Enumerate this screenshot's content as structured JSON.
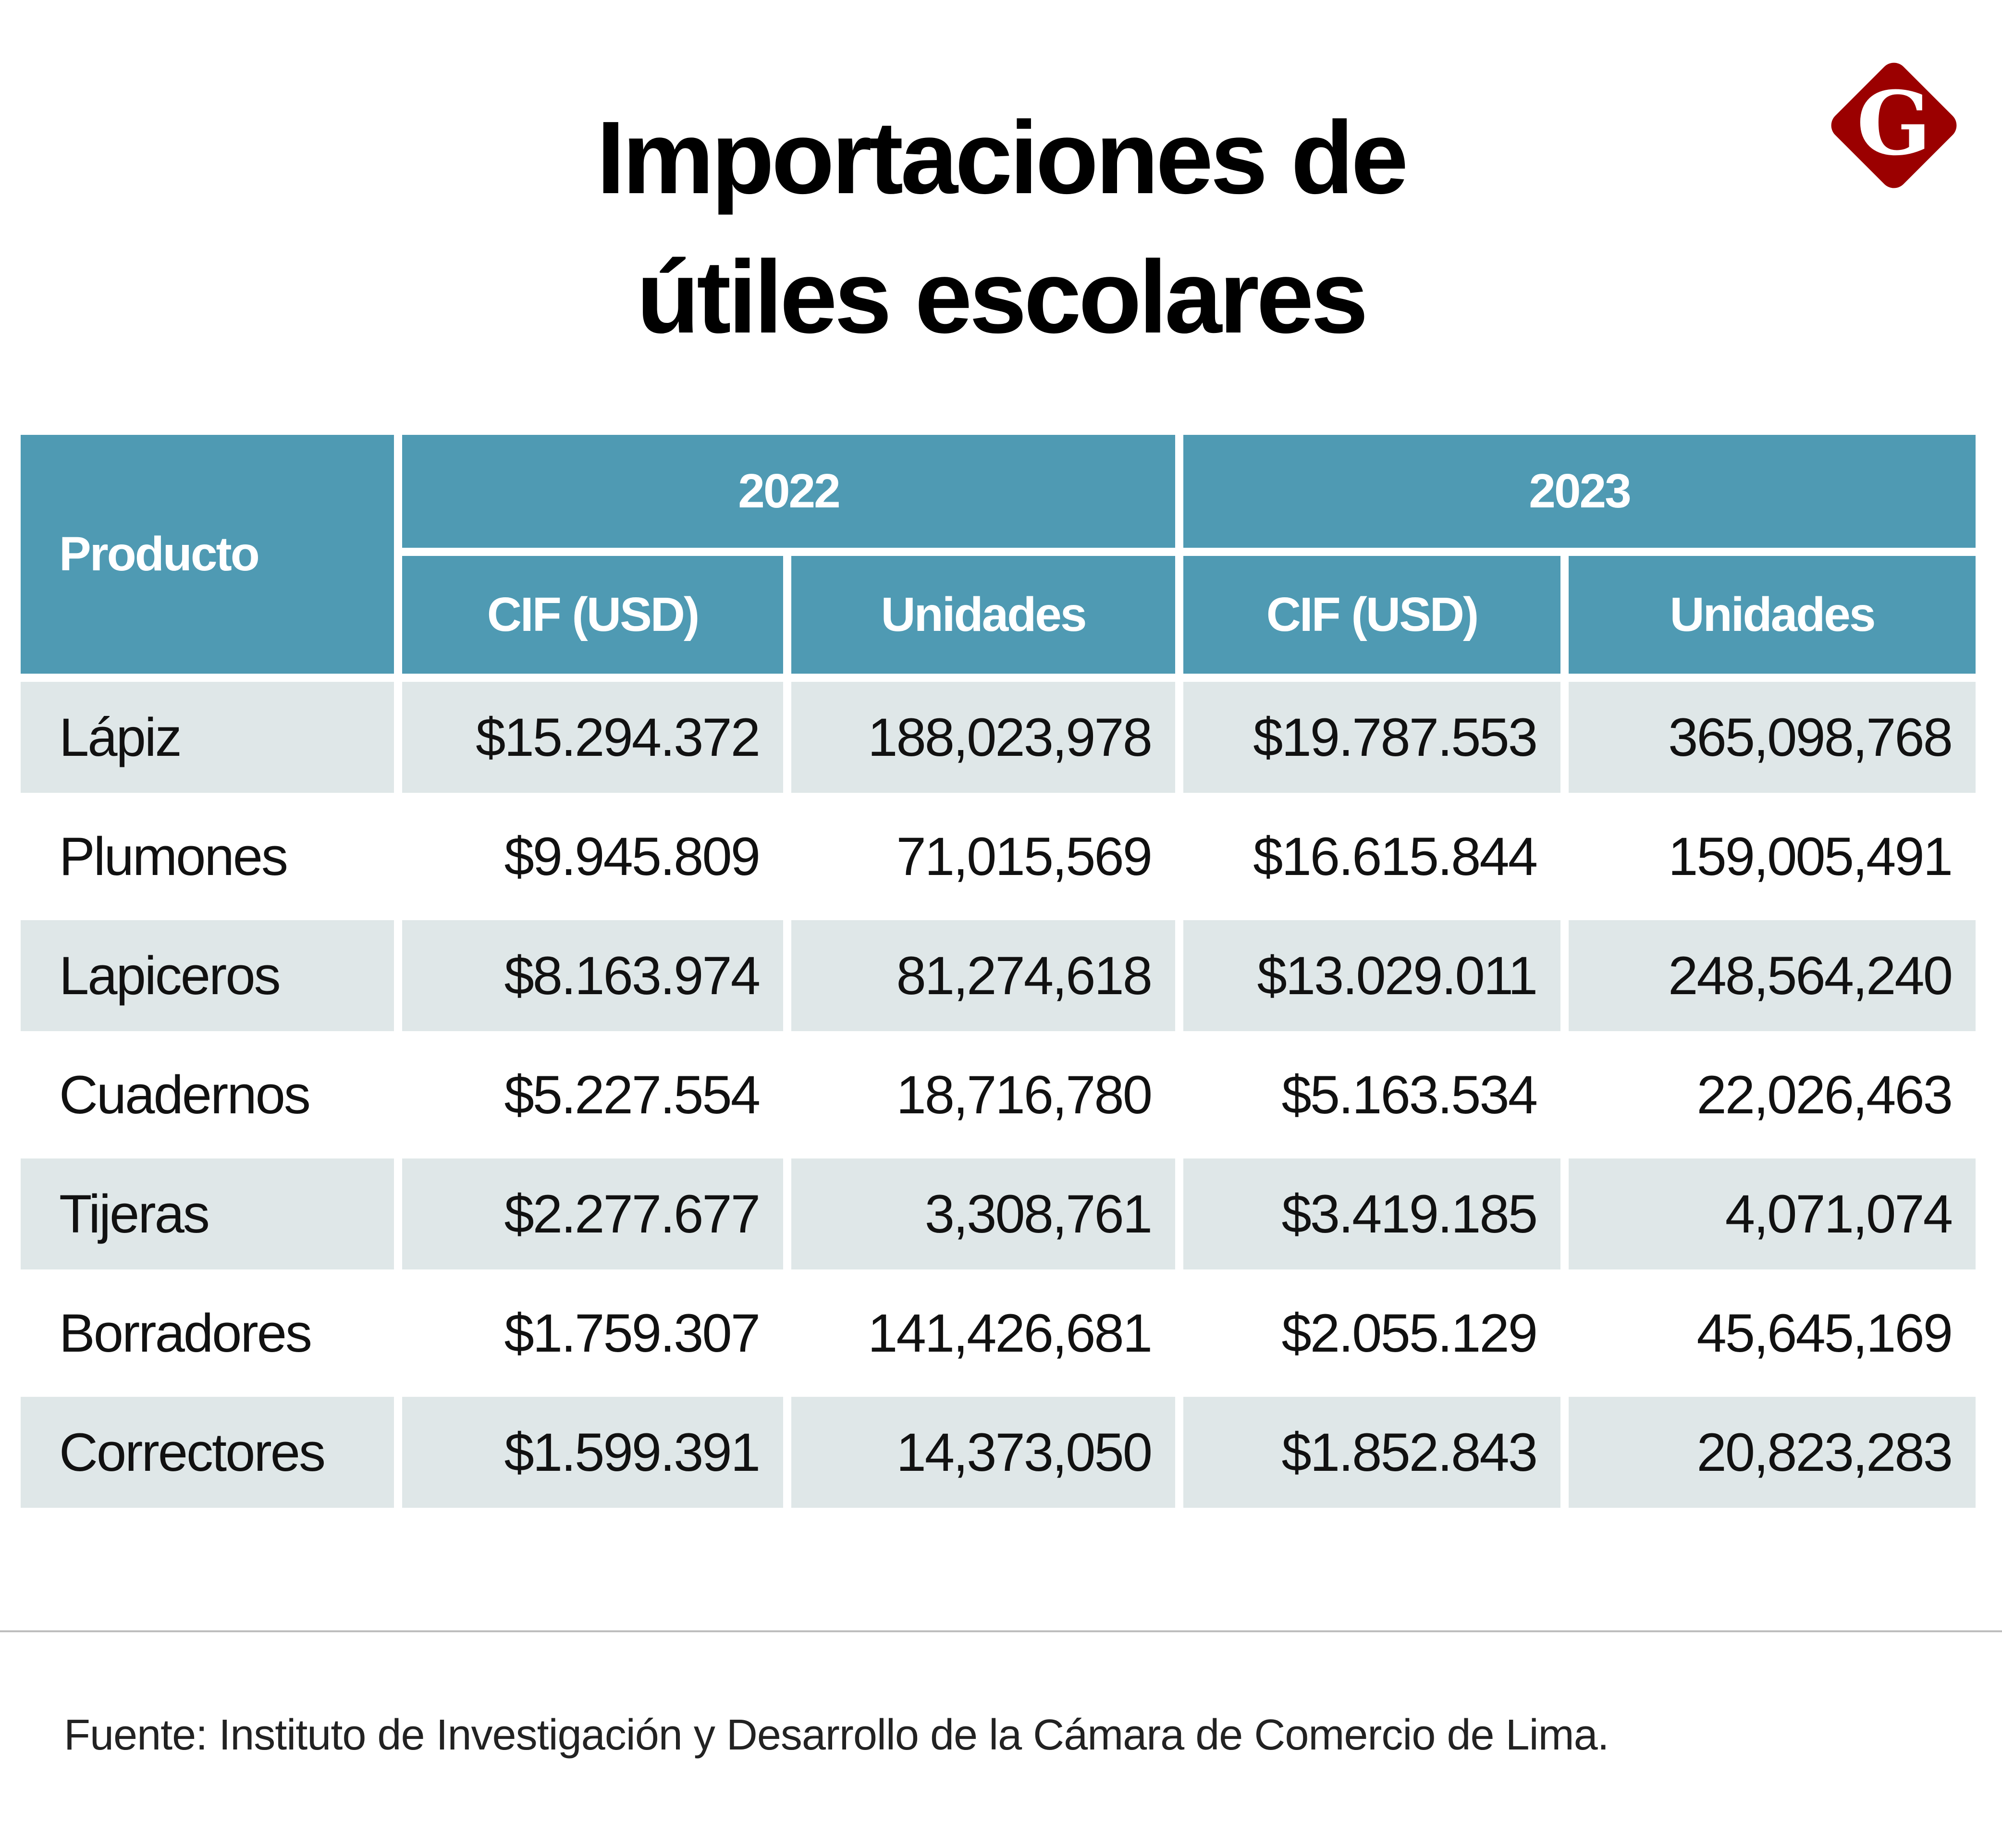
{
  "title": {
    "line1": "Importaciones de",
    "line2": "útiles escolares"
  },
  "logo": {
    "letter": "G",
    "color": "#9b0000",
    "icon": "g-diamond-logo"
  },
  "colors": {
    "header": "#4f9ab3",
    "shaded_row": "#dfe7e8"
  },
  "table": {
    "product_header": "Producto",
    "years": [
      "2022",
      "2023"
    ],
    "subheaders": [
      "CIF (USD)",
      "Unidades",
      "CIF (USD)",
      "Unidades"
    ],
    "rows": [
      {
        "product": "Lápiz",
        "cif_2022": "$15.294.372",
        "units_2022": "188,023,978",
        "cif_2023": "$19.787.553",
        "units_2023": "365,098,768"
      },
      {
        "product": "Plumones",
        "cif_2022": "$9.945.809",
        "units_2022": "71,015,569",
        "cif_2023": "$16.615.844",
        "units_2023": "159,005,491"
      },
      {
        "product": "Lapiceros",
        "cif_2022": "$8.163.974",
        "units_2022": "81,274,618",
        "cif_2023": "$13.029.011",
        "units_2023": "248,564,240"
      },
      {
        "product": "Cuadernos",
        "cif_2022": "$5.227.554",
        "units_2022": "18,716,780",
        "cif_2023": "$5.163.534",
        "units_2023": "22,026,463"
      },
      {
        "product": "Tijeras",
        "cif_2022": "$2.277.677",
        "units_2022": "3,308,761",
        "cif_2023": "$3.419.185",
        "units_2023": "4,071,074"
      },
      {
        "product": "Borradores",
        "cif_2022": "$1.759.307",
        "units_2022": "141,426,681",
        "cif_2023": "$2.055.129",
        "units_2023": "45,645,169"
      },
      {
        "product": "Correctores",
        "cif_2022": "$1.599.391",
        "units_2022": "14,373,050",
        "cif_2023": "$1.852.843",
        "units_2023": "20,823,283"
      }
    ]
  },
  "source": "Fuente: Instituto de Investigación y Desarrollo de la Cámara de Comercio de Lima."
}
